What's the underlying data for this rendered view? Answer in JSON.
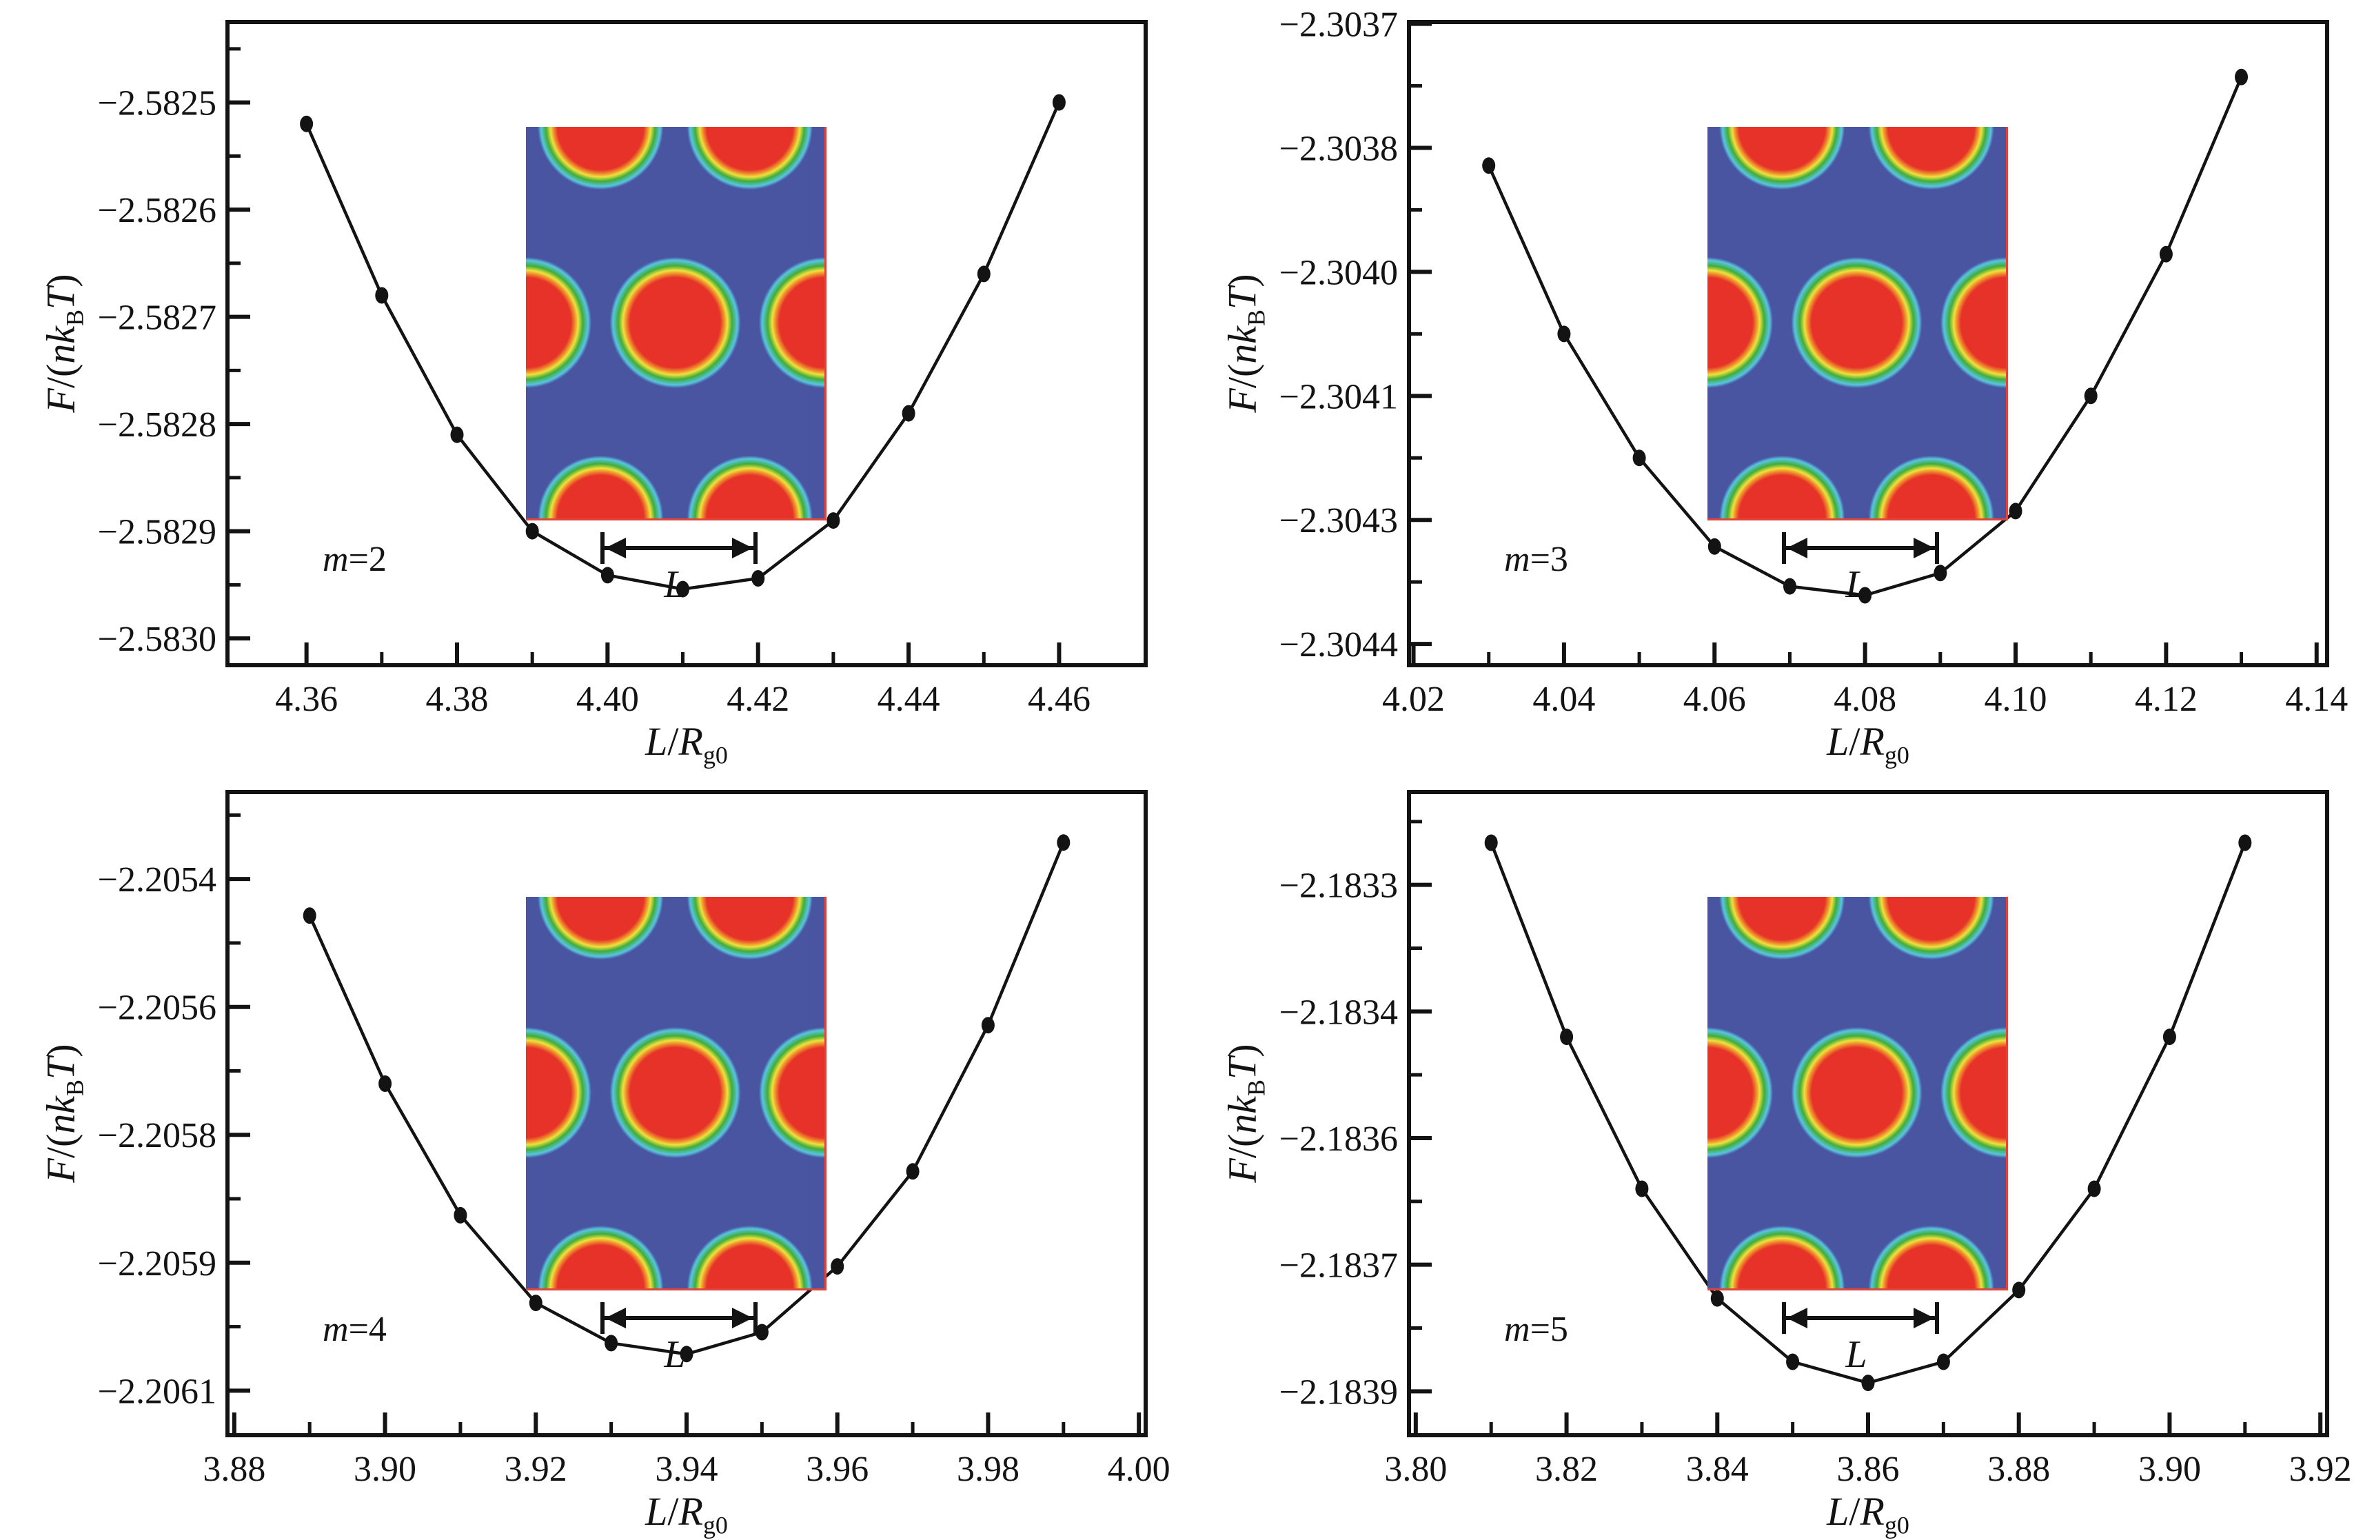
{
  "figure": {
    "background": "#ffffff",
    "curve_color": "#131313",
    "marker_color": "#131313",
    "inset_colors": {
      "background_blue": "#4a55a2",
      "core_red": "#e63228",
      "ring_orange": "#ee8c2c",
      "ring_yellow": "#f0e13c",
      "ring_green": "#3fad3a",
      "ring_cyan": "#58c5e0",
      "edge_red": "#e0443a"
    }
  },
  "axis_labels": {
    "y": {
      "F": "F",
      "open": "/(",
      "n": "n",
      "k": "k",
      "B": "B",
      "T": "T",
      "close": ")"
    },
    "x": {
      "L": "L",
      "slash": "/",
      "R": "R",
      "sub": "g0"
    }
  },
  "inset": {
    "dim_label": "L",
    "description": "2D density map of hexagonally packed cylinders"
  },
  "chart_data": [
    {
      "type": "line",
      "title": "m=2",
      "label_var": "m",
      "label_val": "=2",
      "xlabel": "L/Rg0",
      "ylabel": "F/(nkBT)",
      "x_range": [
        4.3495,
        4.4715
      ],
      "y_range": [
        -2.583025,
        -2.582425
      ],
      "x_major": [
        4.36,
        4.38,
        4.4,
        4.42,
        4.44,
        4.46
      ],
      "x_tick_labels": [
        "4.36",
        "4.38",
        "4.40",
        "4.42",
        "4.44",
        "4.46"
      ],
      "x_minor": [
        4.37,
        4.39,
        4.41,
        4.43,
        4.45
      ],
      "y_major": [
        -2.5825,
        -2.5826,
        -2.5827,
        -2.5828,
        -2.5829,
        -2.583
      ],
      "y_tick_labels": [
        "−2.5825",
        "−2.5826",
        "−2.5827",
        "−2.5828",
        "−2.5829",
        "−2.5830"
      ],
      "y_minor": [
        -2.58245,
        -2.58255,
        -2.58265,
        -2.58275,
        -2.58285,
        -2.58295
      ],
      "points": [
        [
          4.36,
          -2.58252
        ],
        [
          4.37,
          -2.58268
        ],
        [
          4.38,
          -2.58281
        ],
        [
          4.39,
          -2.5829
        ],
        [
          4.4,
          -2.582941
        ],
        [
          4.41,
          -2.582954
        ],
        [
          4.42,
          -2.582944
        ],
        [
          4.43,
          -2.58289
        ],
        [
          4.44,
          -2.58279
        ],
        [
          4.45,
          -2.58266
        ],
        [
          4.46,
          -2.5825
        ]
      ]
    },
    {
      "type": "line",
      "title": "m=3",
      "label_var": "m",
      "label_val": "=3",
      "xlabel": "L/Rg0",
      "ylabel": "F/(nkBT)",
      "x_range": [
        4.0194,
        4.1414
      ],
      "y_range": [
        -2.304424,
        -2.303698
      ],
      "x_major": [
        4.02,
        4.04,
        4.06,
        4.08,
        4.1,
        4.12,
        4.14
      ],
      "x_tick_labels": [
        "4.02",
        "4.04",
        "4.06",
        "4.08",
        "4.10",
        "4.12",
        "4.14"
      ],
      "x_minor": [
        4.03,
        4.05,
        4.07,
        4.09,
        4.11,
        4.13
      ],
      "y_major": [
        -2.3037,
        -2.30384,
        -2.30398,
        -2.30412,
        -2.30426,
        -2.3044
      ],
      "y_tick_labels": [
        "−2.3037",
        "−2.3038",
        "−2.3040",
        "−2.3041",
        "−2.3043",
        "−2.3044"
      ],
      "y_minor": [
        -2.30377,
        -2.30391,
        -2.30405,
        -2.30419,
        -2.30433
      ],
      "points": [
        [
          4.03,
          -2.30386
        ],
        [
          4.04,
          -2.30405
        ],
        [
          4.05,
          -2.30419
        ],
        [
          4.06,
          -2.30429
        ],
        [
          4.07,
          -2.304335
        ],
        [
          4.08,
          -2.304345
        ],
        [
          4.09,
          -2.30432
        ],
        [
          4.1,
          -2.30425
        ],
        [
          4.11,
          -2.30412
        ],
        [
          4.12,
          -2.30396
        ],
        [
          4.13,
          -2.30376
        ]
      ]
    },
    {
      "type": "line",
      "title": "m=4",
      "label_var": "m",
      "label_val": "=4",
      "xlabel": "L/Rg0",
      "ylabel": "F/(nkBT)",
      "x_range": [
        3.8791,
        4.0009
      ],
      "y_range": [
        -2.206161,
        -2.205281
      ],
      "x_major": [
        3.88,
        3.9,
        3.92,
        3.94,
        3.96,
        3.98,
        4.0
      ],
      "x_tick_labels": [
        "3.88",
        "3.90",
        "3.92",
        "3.94",
        "3.96",
        "3.98",
        "4.00"
      ],
      "x_minor": [
        3.89,
        3.91,
        3.93,
        3.95,
        3.97,
        3.99
      ],
      "y_major": [
        -2.2054,
        -2.205575,
        -2.20575,
        -2.205925,
        -2.2061
      ],
      "y_tick_labels": [
        "−2.2054",
        "−2.2056",
        "−2.2058",
        "−2.2059",
        "−2.2061"
      ],
      "y_minor": [
        -2.2053125,
        -2.2054875,
        -2.2056625,
        -2.2058375,
        -2.2060125
      ],
      "points": [
        [
          3.89,
          -2.20545
        ],
        [
          3.9,
          -2.20568
        ],
        [
          3.91,
          -2.20586
        ],
        [
          3.92,
          -2.20598
        ],
        [
          3.93,
          -2.206035
        ],
        [
          3.94,
          -2.20605
        ],
        [
          3.95,
          -2.20602
        ],
        [
          3.96,
          -2.20593
        ],
        [
          3.97,
          -2.2058
        ],
        [
          3.98,
          -2.2056
        ],
        [
          3.99,
          -2.20535
        ]
      ]
    },
    {
      "type": "line",
      "title": "m=5",
      "label_var": "m",
      "label_val": "=5",
      "xlabel": "L/Rg0",
      "ylabel": "F/(nkBT)",
      "x_range": [
        3.7991,
        3.9209
      ],
      "y_range": [
        -2.183952,
        -2.18319
      ],
      "x_major": [
        3.8,
        3.82,
        3.84,
        3.86,
        3.88,
        3.9,
        3.92
      ],
      "x_tick_labels": [
        "3.80",
        "3.82",
        "3.84",
        "3.86",
        "3.88",
        "3.90",
        "3.92"
      ],
      "x_minor": [
        3.81,
        3.83,
        3.85,
        3.87,
        3.89,
        3.91
      ],
      "y_major": [
        -2.1833,
        -2.18345,
        -2.1836,
        -2.18375,
        -2.1839
      ],
      "y_tick_labels": [
        "−2.1833",
        "−2.1834",
        "−2.1836",
        "−2.1837",
        "−2.1839"
      ],
      "y_minor": [
        -2.183225,
        -2.183375,
        -2.183525,
        -2.183675,
        -2.183825
      ],
      "points": [
        [
          3.81,
          -2.18325
        ],
        [
          3.82,
          -2.18348
        ],
        [
          3.83,
          -2.18366
        ],
        [
          3.84,
          -2.18379
        ],
        [
          3.85,
          -2.183865
        ],
        [
          3.86,
          -2.18389
        ],
        [
          3.87,
          -2.183865
        ],
        [
          3.88,
          -2.18378
        ],
        [
          3.89,
          -2.18366
        ],
        [
          3.9,
          -2.18348
        ],
        [
          3.91,
          -2.18325
        ]
      ]
    }
  ]
}
